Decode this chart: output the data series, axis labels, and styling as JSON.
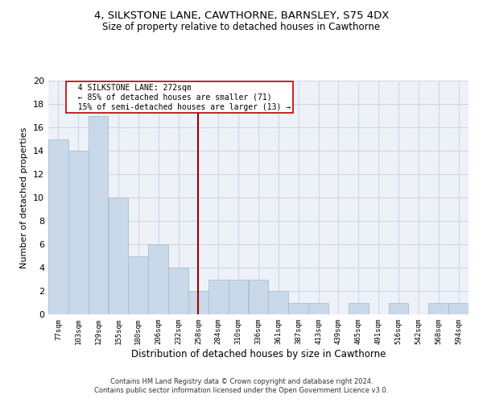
{
  "title1": "4, SILKSTONE LANE, CAWTHORNE, BARNSLEY, S75 4DX",
  "title2": "Size of property relative to detached houses in Cawthorne",
  "xlabel": "Distribution of detached houses by size in Cawthorne",
  "ylabel": "Number of detached properties",
  "bar_color": "#c9d9ea",
  "bar_edge_color": "#a8bece",
  "categories": [
    "77sqm",
    "103sqm",
    "129sqm",
    "155sqm",
    "180sqm",
    "206sqm",
    "232sqm",
    "258sqm",
    "284sqm",
    "310sqm",
    "336sqm",
    "361sqm",
    "387sqm",
    "413sqm",
    "439sqm",
    "465sqm",
    "491sqm",
    "516sqm",
    "542sqm",
    "568sqm",
    "594sqm"
  ],
  "values": [
    15,
    14,
    17,
    10,
    5,
    6,
    4,
    2,
    3,
    3,
    3,
    2,
    1,
    1,
    0,
    1,
    0,
    1,
    0,
    1,
    1
  ],
  "property_size": 272,
  "property_label": "4 SILKSTONE LANE: 272sqm",
  "annotation_line1": "← 85% of detached houses are smaller (71)",
  "annotation_line2": "15% of semi-detached houses are larger (13) →",
  "vline_color": "#990000",
  "annotation_box_edge": "#bb0000",
  "grid_color": "#ccd6e8",
  "background_color": "#eef2f8",
  "footer1": "Contains HM Land Registry data © Crown copyright and database right 2024.",
  "footer2": "Contains public sector information licensed under the Open Government Licence v3.0.",
  "ylim": [
    0,
    20
  ],
  "bin_width": 26,
  "vline_x_sqm": 272
}
